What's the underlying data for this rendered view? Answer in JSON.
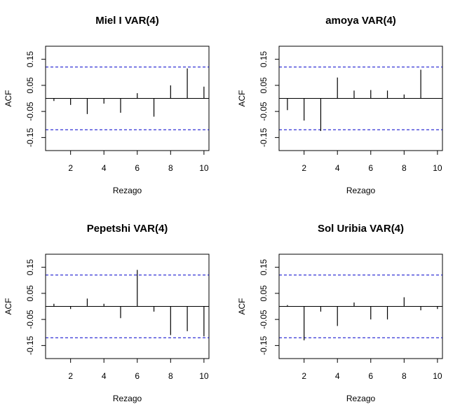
{
  "chart_data": [
    {
      "type": "bar",
      "title": "Miel I VAR(4)",
      "xlabel": "Rezago",
      "ylabel": "ACF",
      "x": [
        1,
        2,
        3,
        4,
        5,
        6,
        7,
        8,
        9,
        10
      ],
      "values": [
        -0.01,
        -0.025,
        -0.06,
        -0.02,
        -0.055,
        0.02,
        -0.07,
        0.05,
        0.115,
        0.045
      ],
      "ci": 0.12,
      "xlim": [
        0.5,
        10.3
      ],
      "ylim": [
        -0.2,
        0.2
      ],
      "xticks": [
        2,
        4,
        6,
        8,
        10
      ],
      "yticks": [
        -0.15,
        -0.05,
        0.05,
        0.15
      ],
      "ytick_labels": [
        "-0.15",
        "-0.05",
        "0.05",
        "0.15"
      ]
    },
    {
      "type": "bar",
      "title": "amoya VAR(4)",
      "xlabel": "Rezago",
      "ylabel": "ACF",
      "x": [
        1,
        2,
        3,
        4,
        5,
        6,
        7,
        8,
        9,
        10
      ],
      "values": [
        -0.045,
        -0.085,
        -0.125,
        0.08,
        0.03,
        0.032,
        0.03,
        0.015,
        0.11,
        0.0
      ],
      "ci": 0.12,
      "xlim": [
        0.5,
        10.3
      ],
      "ylim": [
        -0.2,
        0.2
      ],
      "xticks": [
        2,
        4,
        6,
        8,
        10
      ],
      "yticks": [
        -0.15,
        -0.05,
        0.05,
        0.15
      ],
      "ytick_labels": [
        "-0.15",
        "-0.05",
        "0.05",
        "0.15"
      ]
    },
    {
      "type": "bar",
      "title": "Pepetshi VAR(4)",
      "xlabel": "Rezago",
      "ylabel": "ACF",
      "x": [
        1,
        2,
        3,
        4,
        5,
        6,
        7,
        8,
        9,
        10
      ],
      "values": [
        0.01,
        -0.01,
        0.03,
        0.01,
        -0.045,
        0.14,
        -0.02,
        -0.11,
        -0.095,
        -0.115
      ],
      "ci": 0.12,
      "xlim": [
        0.5,
        10.3
      ],
      "ylim": [
        -0.2,
        0.2
      ],
      "xticks": [
        2,
        4,
        6,
        8,
        10
      ],
      "yticks": [
        -0.15,
        -0.05,
        0.05,
        0.15
      ],
      "ytick_labels": [
        "-0.15",
        "-0.05",
        "0.05",
        "0.15"
      ]
    },
    {
      "type": "bar",
      "title": "Sol Uribia VAR(4)",
      "xlabel": "Rezago",
      "ylabel": "ACF",
      "x": [
        1,
        2,
        3,
        4,
        5,
        6,
        7,
        8,
        9,
        10
      ],
      "values": [
        0.005,
        -0.13,
        -0.02,
        -0.075,
        0.015,
        -0.05,
        -0.05,
        0.035,
        -0.015,
        -0.01
      ],
      "ci": 0.12,
      "xlim": [
        0.5,
        10.3
      ],
      "ylim": [
        -0.2,
        0.2
      ],
      "xticks": [
        2,
        4,
        6,
        8,
        10
      ],
      "yticks": [
        -0.15,
        -0.05,
        0.05,
        0.15
      ],
      "ytick_labels": [
        "-0.15",
        "-0.05",
        "0.05",
        "0.15"
      ]
    }
  ],
  "colors": {
    "ci_line": "#0000cc",
    "bars": "#000000",
    "frame": "#000000"
  }
}
